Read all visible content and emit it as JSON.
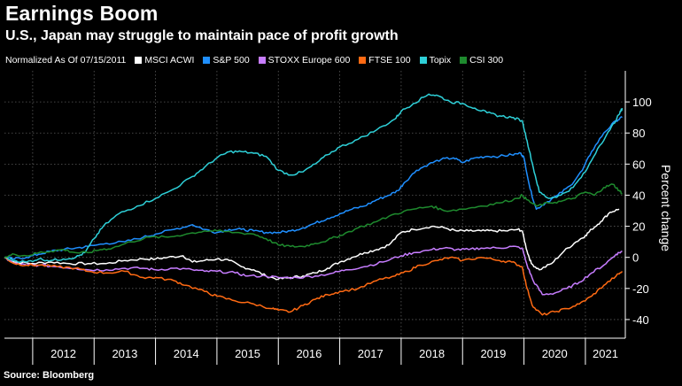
{
  "title": "Earnings Boom",
  "subtitle": "U.S., Japan may struggle to maintain pace of profit growth",
  "legend_prefix": "Normalized As Of 07/15/2011",
  "source": "Source: Bloomberg",
  "chart_data": {
    "type": "line",
    "title": "Earnings Boom",
    "subtitle": "U.S., Japan may struggle to maintain pace of profit growth",
    "xlabel": "",
    "ylabel": "Percent change",
    "xlim": [
      2011.54,
      2021.65
    ],
    "ylim": [
      -52,
      120
    ],
    "yticks": [
      -40,
      -20,
      0,
      20,
      40,
      60,
      80,
      100
    ],
    "ytick_labels": [
      "-40",
      "-20",
      "0",
      "20",
      "40",
      "60",
      "80",
      "100"
    ],
    "xtick_labels": [
      "2012",
      "2013",
      "2014",
      "2015",
      "2016",
      "2017",
      "2018",
      "2019",
      "2020",
      "2021"
    ],
    "year_boundaries": [
      2012,
      2013,
      2014,
      2015,
      2016,
      2017,
      2018,
      2019,
      2020,
      2021
    ],
    "grid": true,
    "legend_position": "top-left",
    "series": [
      {
        "name": "MSCI ACWI",
        "color": "#ffffff",
        "points": [
          [
            2011.54,
            0
          ],
          [
            2011.7,
            -3
          ],
          [
            2012.0,
            -4
          ],
          [
            2012.3,
            -3
          ],
          [
            2012.6,
            -4
          ],
          [
            2012.9,
            -4
          ],
          [
            2013.2,
            -4
          ],
          [
            2013.5,
            -2
          ],
          [
            2013.8,
            -1
          ],
          [
            2014.0,
            -1
          ],
          [
            2014.2,
            0
          ],
          [
            2014.45,
            1
          ],
          [
            2014.6,
            -3
          ],
          [
            2014.8,
            -2
          ],
          [
            2015.0,
            -1
          ],
          [
            2015.2,
            -2
          ],
          [
            2015.4,
            -6
          ],
          [
            2015.6,
            -8
          ],
          [
            2015.8,
            -12
          ],
          [
            2016.0,
            -14
          ],
          [
            2016.2,
            -13
          ],
          [
            2016.4,
            -12
          ],
          [
            2016.6,
            -10
          ],
          [
            2016.8,
            -7
          ],
          [
            2017.0,
            -3
          ],
          [
            2017.2,
            0
          ],
          [
            2017.4,
            3
          ],
          [
            2017.6,
            5
          ],
          [
            2017.8,
            8
          ],
          [
            2018.0,
            16
          ],
          [
            2018.2,
            18
          ],
          [
            2018.5,
            20
          ],
          [
            2018.7,
            19
          ],
          [
            2018.9,
            17
          ],
          [
            2019.1,
            17
          ],
          [
            2019.3,
            17
          ],
          [
            2019.5,
            17
          ],
          [
            2019.7,
            17
          ],
          [
            2019.9,
            18
          ],
          [
            2019.97,
            17
          ],
          [
            2020.05,
            4
          ],
          [
            2020.12,
            -4
          ],
          [
            2020.25,
            -8
          ],
          [
            2020.45,
            -4
          ],
          [
            2020.65,
            4
          ],
          [
            2020.85,
            10
          ],
          [
            2021.0,
            14
          ],
          [
            2021.1,
            18
          ],
          [
            2021.25,
            23
          ],
          [
            2021.4,
            29
          ],
          [
            2021.55,
            31
          ]
        ]
      },
      {
        "name": "S&P 500",
        "color": "#1f8fff",
        "points": [
          [
            2011.54,
            0
          ],
          [
            2011.7,
            -1
          ],
          [
            2011.9,
            0
          ],
          [
            2012.1,
            2
          ],
          [
            2012.3,
            4
          ],
          [
            2012.5,
            5
          ],
          [
            2012.7,
            6
          ],
          [
            2012.9,
            7
          ],
          [
            2013.2,
            9
          ],
          [
            2013.5,
            10
          ],
          [
            2013.8,
            13
          ],
          [
            2014.0,
            15
          ],
          [
            2014.3,
            18
          ],
          [
            2014.6,
            21
          ],
          [
            2014.8,
            18
          ],
          [
            2015.0,
            16
          ],
          [
            2015.2,
            18
          ],
          [
            2015.4,
            18
          ],
          [
            2015.6,
            17
          ],
          [
            2015.8,
            16
          ],
          [
            2016.0,
            16
          ],
          [
            2016.2,
            17
          ],
          [
            2016.4,
            19
          ],
          [
            2016.6,
            22
          ],
          [
            2016.8,
            25
          ],
          [
            2017.0,
            28
          ],
          [
            2017.2,
            31
          ],
          [
            2017.4,
            33
          ],
          [
            2017.6,
            37
          ],
          [
            2017.8,
            40
          ],
          [
            2017.95,
            43
          ],
          [
            2018.05,
            48
          ],
          [
            2018.25,
            56
          ],
          [
            2018.45,
            60
          ],
          [
            2018.65,
            63
          ],
          [
            2018.85,
            64
          ],
          [
            2019.0,
            61
          ],
          [
            2019.2,
            64
          ],
          [
            2019.4,
            65
          ],
          [
            2019.6,
            65
          ],
          [
            2019.8,
            66
          ],
          [
            2019.95,
            67
          ],
          [
            2020.0,
            64
          ],
          [
            2020.1,
            44
          ],
          [
            2020.2,
            31
          ],
          [
            2020.35,
            35
          ],
          [
            2020.55,
            40
          ],
          [
            2020.75,
            46
          ],
          [
            2020.95,
            56
          ],
          [
            2021.1,
            68
          ],
          [
            2021.3,
            80
          ],
          [
            2021.5,
            88
          ],
          [
            2021.6,
            90
          ]
        ]
      },
      {
        "name": "STOXX Europe 600",
        "color": "#c77dff",
        "points": [
          [
            2011.54,
            0
          ],
          [
            2011.7,
            -4
          ],
          [
            2011.9,
            -5
          ],
          [
            2012.1,
            -5
          ],
          [
            2012.4,
            -6
          ],
          [
            2012.7,
            -7
          ],
          [
            2012.9,
            -8
          ],
          [
            2013.2,
            -8
          ],
          [
            2013.5,
            -7
          ],
          [
            2013.8,
            -7
          ],
          [
            2014.0,
            -8
          ],
          [
            2014.3,
            -7
          ],
          [
            2014.6,
            -8
          ],
          [
            2014.8,
            -9
          ],
          [
            2015.0,
            -9
          ],
          [
            2015.3,
            -10
          ],
          [
            2015.5,
            -12
          ],
          [
            2015.8,
            -12
          ],
          [
            2016.0,
            -13
          ],
          [
            2016.3,
            -13
          ],
          [
            2016.6,
            -12
          ],
          [
            2016.9,
            -10
          ],
          [
            2017.1,
            -8
          ],
          [
            2017.4,
            -6
          ],
          [
            2017.7,
            -3
          ],
          [
            2018.0,
            1
          ],
          [
            2018.2,
            3
          ],
          [
            2018.5,
            5
          ],
          [
            2018.7,
            6
          ],
          [
            2018.9,
            5
          ],
          [
            2019.1,
            5
          ],
          [
            2019.3,
            6
          ],
          [
            2019.6,
            6
          ],
          [
            2019.8,
            7
          ],
          [
            2019.97,
            6
          ],
          [
            2020.05,
            -5
          ],
          [
            2020.15,
            -15
          ],
          [
            2020.3,
            -24
          ],
          [
            2020.5,
            -23
          ],
          [
            2020.7,
            -20
          ],
          [
            2020.9,
            -16
          ],
          [
            2021.1,
            -10
          ],
          [
            2021.3,
            -5
          ],
          [
            2021.5,
            2
          ],
          [
            2021.6,
            4
          ]
        ]
      },
      {
        "name": "FTSE 100",
        "color": "#ff6a13",
        "points": [
          [
            2011.54,
            0
          ],
          [
            2011.7,
            -4
          ],
          [
            2011.9,
            -5
          ],
          [
            2012.1,
            -5
          ],
          [
            2012.4,
            -6
          ],
          [
            2012.7,
            -7
          ],
          [
            2012.9,
            -9
          ],
          [
            2013.2,
            -10
          ],
          [
            2013.5,
            -9
          ],
          [
            2013.8,
            -13
          ],
          [
            2014.0,
            -13
          ],
          [
            2014.3,
            -15
          ],
          [
            2014.5,
            -18
          ],
          [
            2014.8,
            -22
          ],
          [
            2015.0,
            -25
          ],
          [
            2015.3,
            -28
          ],
          [
            2015.6,
            -30
          ],
          [
            2015.9,
            -33
          ],
          [
            2016.0,
            -34
          ],
          [
            2016.2,
            -35
          ],
          [
            2016.4,
            -31
          ],
          [
            2016.6,
            -27
          ],
          [
            2016.8,
            -24
          ],
          [
            2017.0,
            -22
          ],
          [
            2017.3,
            -20
          ],
          [
            2017.6,
            -15
          ],
          [
            2017.9,
            -12
          ],
          [
            2018.1,
            -9
          ],
          [
            2018.3,
            -5
          ],
          [
            2018.6,
            -2
          ],
          [
            2018.8,
            0
          ],
          [
            2019.0,
            -2
          ],
          [
            2019.3,
            0
          ],
          [
            2019.6,
            -2
          ],
          [
            2019.8,
            -3
          ],
          [
            2019.97,
            -6
          ],
          [
            2020.05,
            -20
          ],
          [
            2020.15,
            -32
          ],
          [
            2020.3,
            -37
          ],
          [
            2020.5,
            -35
          ],
          [
            2020.7,
            -33
          ],
          [
            2020.9,
            -30
          ],
          [
            2021.1,
            -25
          ],
          [
            2021.3,
            -18
          ],
          [
            2021.5,
            -12
          ],
          [
            2021.6,
            -9
          ]
        ]
      },
      {
        "name": "Topix",
        "color": "#2ed0d8",
        "points": [
          [
            2011.54,
            0
          ],
          [
            2011.7,
            -2
          ],
          [
            2011.9,
            -3
          ],
          [
            2012.1,
            -1
          ],
          [
            2012.3,
            -2
          ],
          [
            2012.5,
            -1
          ],
          [
            2012.7,
            0
          ],
          [
            2012.85,
            3
          ],
          [
            2013.0,
            12
          ],
          [
            2013.15,
            20
          ],
          [
            2013.4,
            28
          ],
          [
            2013.7,
            33
          ],
          [
            2014.0,
            38
          ],
          [
            2014.3,
            44
          ],
          [
            2014.6,
            52
          ],
          [
            2014.8,
            58
          ],
          [
            2015.0,
            64
          ],
          [
            2015.2,
            68
          ],
          [
            2015.4,
            68
          ],
          [
            2015.6,
            67
          ],
          [
            2015.8,
            65
          ],
          [
            2016.0,
            56
          ],
          [
            2016.2,
            53
          ],
          [
            2016.4,
            55
          ],
          [
            2016.6,
            60
          ],
          [
            2016.8,
            66
          ],
          [
            2017.0,
            71
          ],
          [
            2017.3,
            76
          ],
          [
            2017.6,
            82
          ],
          [
            2017.9,
            89
          ],
          [
            2018.0,
            94
          ],
          [
            2018.2,
            99
          ],
          [
            2018.45,
            105
          ],
          [
            2018.6,
            104
          ],
          [
            2018.8,
            100
          ],
          [
            2019.0,
            99
          ],
          [
            2019.2,
            96
          ],
          [
            2019.4,
            93
          ],
          [
            2019.6,
            91
          ],
          [
            2019.8,
            90
          ],
          [
            2019.97,
            88
          ],
          [
            2020.05,
            75
          ],
          [
            2020.15,
            58
          ],
          [
            2020.25,
            42
          ],
          [
            2020.4,
            38
          ],
          [
            2020.6,
            40
          ],
          [
            2020.8,
            45
          ],
          [
            2021.0,
            55
          ],
          [
            2021.2,
            70
          ],
          [
            2021.4,
            82
          ],
          [
            2021.55,
            92
          ],
          [
            2021.6,
            96
          ]
        ]
      },
      {
        "name": "CSI 300",
        "color": "#1e8a2e",
        "points": [
          [
            2011.54,
            0
          ],
          [
            2011.7,
            2
          ],
          [
            2011.9,
            1
          ],
          [
            2012.1,
            3
          ],
          [
            2012.3,
            4
          ],
          [
            2012.5,
            5
          ],
          [
            2012.7,
            3
          ],
          [
            2012.9,
            3
          ],
          [
            2013.1,
            5
          ],
          [
            2013.3,
            6
          ],
          [
            2013.6,
            10
          ],
          [
            2013.9,
            13
          ],
          [
            2014.2,
            13
          ],
          [
            2014.5,
            15
          ],
          [
            2014.8,
            17
          ],
          [
            2015.0,
            17
          ],
          [
            2015.3,
            16
          ],
          [
            2015.6,
            15
          ],
          [
            2015.8,
            12
          ],
          [
            2016.0,
            8
          ],
          [
            2016.2,
            7
          ],
          [
            2016.4,
            7
          ],
          [
            2016.6,
            9
          ],
          [
            2016.8,
            11
          ],
          [
            2017.0,
            14
          ],
          [
            2017.3,
            19
          ],
          [
            2017.6,
            23
          ],
          [
            2017.9,
            28
          ],
          [
            2018.2,
            31
          ],
          [
            2018.5,
            33
          ],
          [
            2018.7,
            30
          ],
          [
            2019.0,
            31
          ],
          [
            2019.3,
            33
          ],
          [
            2019.6,
            35
          ],
          [
            2019.9,
            38
          ],
          [
            2019.97,
            40
          ],
          [
            2020.05,
            37
          ],
          [
            2020.2,
            33
          ],
          [
            2020.4,
            35
          ],
          [
            2020.6,
            36
          ],
          [
            2020.8,
            38
          ],
          [
            2021.0,
            42
          ],
          [
            2021.15,
            40
          ],
          [
            2021.3,
            45
          ],
          [
            2021.45,
            47
          ],
          [
            2021.55,
            43
          ],
          [
            2021.6,
            41
          ]
        ]
      }
    ]
  }
}
